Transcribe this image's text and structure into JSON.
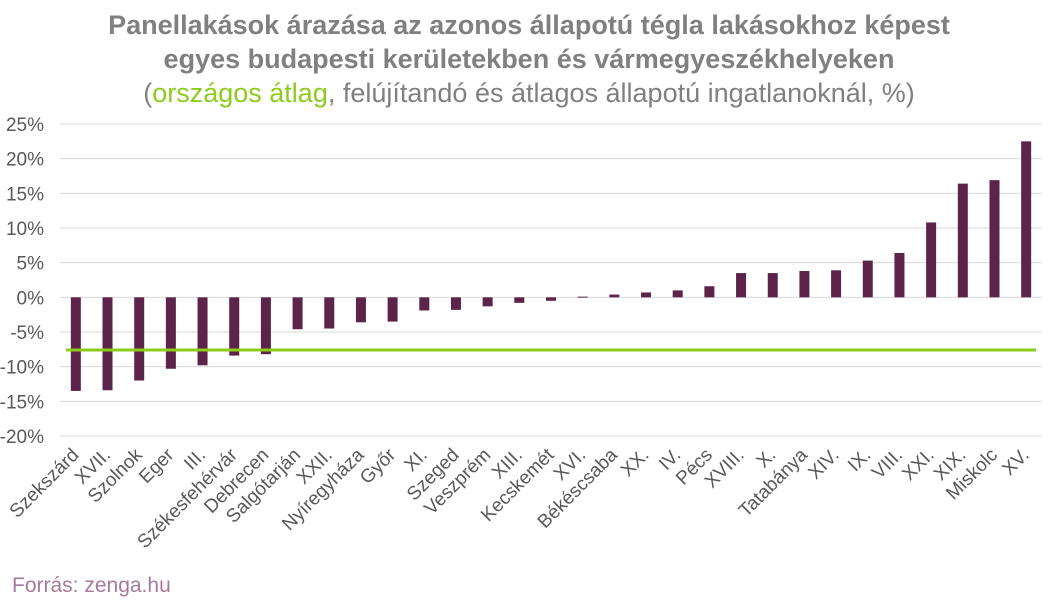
{
  "title": {
    "line1": "Panellakások árazása az azonos állapotú tégla lakásokhoz képest",
    "line2": "egyes budapesti kerületekben és vármegyeszékhelyeken",
    "sub_open": "(",
    "sub_avg": "országos átlag",
    "sub_rest": ", felújítandó és átlagos állapotú ingatlanoknál, %)"
  },
  "source": "Forrás: zenga.hu",
  "colors": {
    "bar": "#5c2449",
    "avg_line": "#8ccc1d",
    "grid": "#d9d9d9",
    "text": "#595959"
  },
  "chart_data": {
    "type": "bar",
    "categories": [
      "Szekszárd",
      "XVII.",
      "Szolnok",
      "Eger",
      "III.",
      "Székesfehérvár",
      "Debrecen",
      "Salgótarján",
      "XXII.",
      "Nyíregyháza",
      "Győr",
      "XI.",
      "Szeged",
      "Veszprém",
      "XIII.",
      "Kecskemét",
      "XVI.",
      "Békéscsaba",
      "XX.",
      "IV.",
      "Pécs",
      "XVIII.",
      "X.",
      "Tatabánya",
      "XIV.",
      "IX.",
      "VIII.",
      "XXI.",
      "XIX.",
      "Miskolc",
      "XV."
    ],
    "values": [
      -13.5,
      -13.4,
      -12.0,
      -10.3,
      -9.8,
      -8.4,
      -8.2,
      -4.6,
      -4.5,
      -3.6,
      -3.5,
      -1.9,
      -1.8,
      -1.3,
      -0.8,
      -0.5,
      0.1,
      0.4,
      0.7,
      1.0,
      1.6,
      3.5,
      3.5,
      3.8,
      3.9,
      5.3,
      6.4,
      10.8,
      16.4,
      16.9,
      22.5
    ],
    "average": -7.6,
    "ylim": [
      -20,
      25
    ],
    "yticks": [
      25,
      20,
      15,
      10,
      5,
      0,
      -5,
      -10,
      -15,
      -20
    ],
    "ytick_labels": [
      "25%",
      "20%",
      "15%",
      "10%",
      "5%",
      "0%",
      "-5%",
      "-10%",
      "-15%",
      "-20%"
    ],
    "grid": true,
    "legend": "none"
  }
}
